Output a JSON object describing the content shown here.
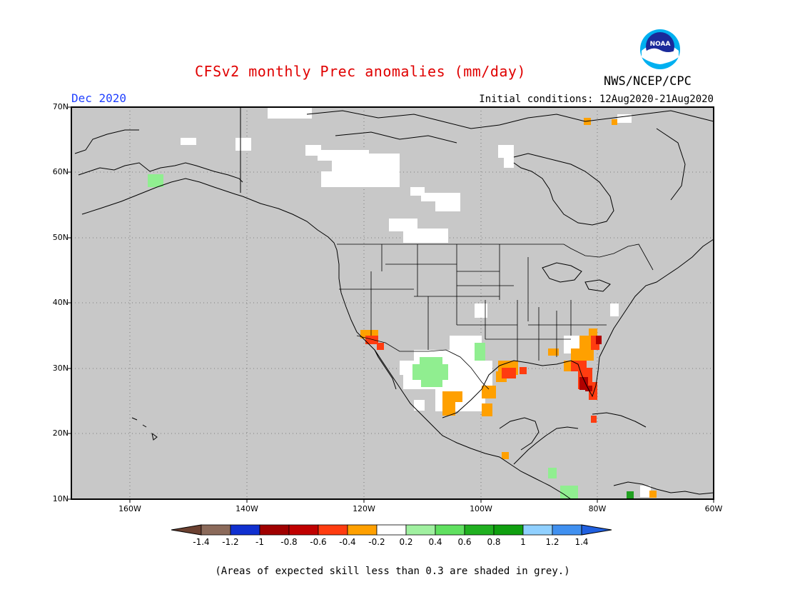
{
  "header": {
    "title": "CFSv2 monthly Prec anomalies (mm/day)",
    "month": "Dec 2020",
    "initial_conditions": "Initial conditions: 12Aug2020-21Aug2020",
    "agency": "NWS/NCEP/CPC",
    "logo_text": "NOAA"
  },
  "map": {
    "lat_labels": [
      "70N",
      "60N",
      "50N",
      "40N",
      "30N",
      "20N",
      "10N"
    ],
    "lon_labels": [
      "160W",
      "140W",
      "120W",
      "100W",
      "80W",
      "60W"
    ],
    "background_color": "#c8c8c8",
    "region": "North America"
  },
  "colorbar": {
    "labels": [
      "-1.4",
      "-1.2",
      "-1",
      "-0.8",
      "-0.6",
      "-0.4",
      "-0.2",
      "0.2",
      "0.4",
      "0.6",
      "0.8",
      "1",
      "1.2",
      "1.4"
    ],
    "colors": [
      "#6b4030",
      "#8b6a5a",
      "#1030d0",
      "#a00000",
      "#c00000",
      "#ff3c10",
      "#ffa000",
      "#ffffff",
      "#a0f0a0",
      "#60e060",
      "#20b020",
      "#10a010",
      "#90d0ff",
      "#4090f0",
      "#2060e0"
    ]
  },
  "footnote": "(Areas of expected skill less than 0.3 are shaded in grey.)"
}
